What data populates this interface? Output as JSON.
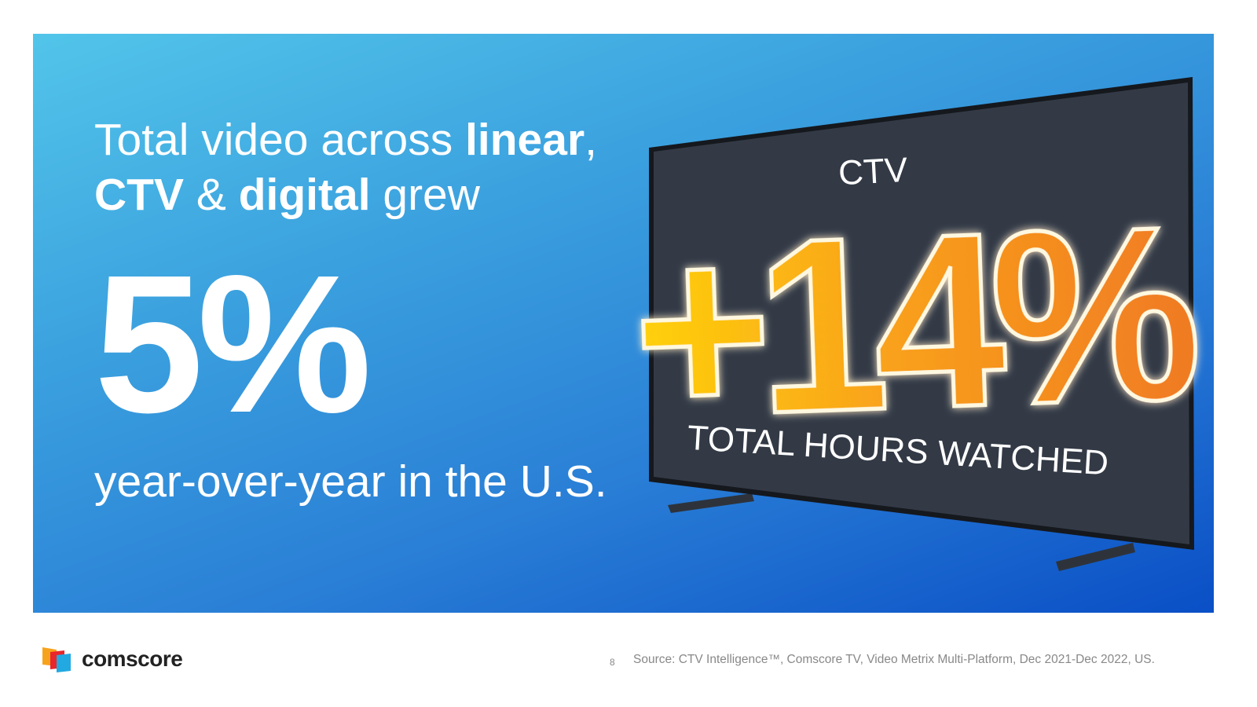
{
  "headline": {
    "parts": [
      "Total video across ",
      "linear",
      ",",
      "CTV",
      " & ",
      "digital",
      " grew"
    ]
  },
  "stat": "5%",
  "subline": "year-over-year in the U.S.",
  "tv": {
    "label": "CTV",
    "stat": "+14%",
    "caption": "TOTAL HOURS WATCHED"
  },
  "footer": {
    "logo": "comscore",
    "page": "8",
    "source": "Source: CTV Intelligence™, Comscore TV, Video Metrix Multi-Platform, Dec 2021-Dec 2022, US."
  }
}
